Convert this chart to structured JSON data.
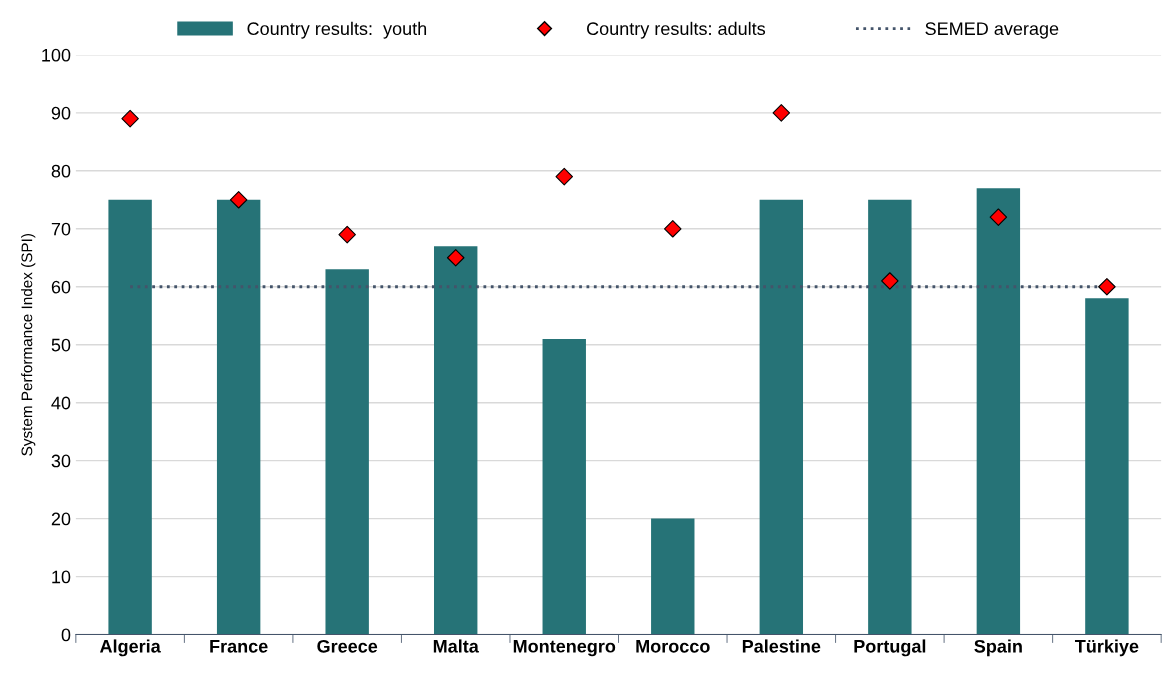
{
  "chart_data": {
    "type": "bar",
    "ylabel": "System Performance Index (SPI)",
    "categories": [
      "Algeria",
      "France",
      "Greece",
      "Malta",
      "Montenegro",
      "Morocco",
      "Palestine",
      "Portugal",
      "Spain",
      "Türkiye"
    ],
    "series": [
      {
        "name": "Country results:  youth",
        "color": "#267377",
        "values": [
          75,
          75,
          63,
          67,
          51,
          20,
          75,
          75,
          77,
          58
        ]
      },
      {
        "name": "Country results: adults",
        "type": "scatter",
        "color": "#ff0000",
        "marker": "diamond",
        "values": [
          89,
          75,
          69,
          65,
          79,
          70,
          90,
          61,
          72,
          60
        ]
      },
      {
        "name": "SEMED average",
        "type": "line",
        "color": "#44546a",
        "line_style": "dotted",
        "values": [
          60,
          60,
          60,
          60,
          60,
          60,
          60,
          60,
          60,
          60
        ]
      }
    ],
    "ylim": [
      0,
      100
    ],
    "yticks": [
      0,
      10,
      20,
      30,
      40,
      50,
      60,
      70,
      80,
      90,
      100
    ],
    "grid": "y",
    "legend": "top"
  }
}
